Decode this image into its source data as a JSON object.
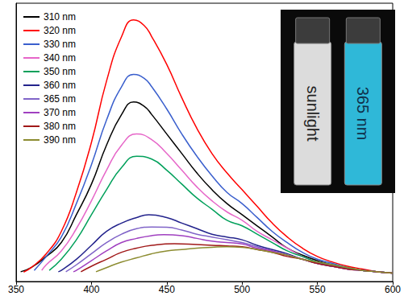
{
  "chart_data": {
    "type": "line",
    "xlim": [
      350,
      600
    ],
    "xticks": [
      350,
      400,
      450,
      500,
      550,
      600
    ],
    "ylim": [
      0,
      100
    ],
    "tick_labels": "x",
    "grid": false,
    "legend": "upper left",
    "annotations": [
      "sunlight",
      "365 nm"
    ],
    "series": [
      {
        "name": "310 nm",
        "color": "#000000",
        "x": [
          353,
          360,
          370,
          380,
          390,
          400,
          410,
          420,
          428,
          435,
          440,
          450,
          460,
          470,
          480,
          490,
          500,
          510,
          520,
          530,
          540,
          550,
          560,
          570,
          580,
          590,
          600
        ],
        "values": [
          3.5,
          5,
          9,
          14,
          24,
          35,
          49,
          60,
          64.5,
          63,
          60,
          53,
          46,
          39,
          33,
          28,
          24,
          20,
          16,
          12,
          9.5,
          7.5,
          6,
          5,
          4,
          3.5,
          3
        ]
      },
      {
        "name": "320 nm",
        "color": "#ff0000",
        "x": [
          355,
          360,
          370,
          380,
          390,
          400,
          410,
          420,
          428,
          435,
          440,
          450,
          460,
          470,
          480,
          490,
          500,
          510,
          520,
          530,
          540,
          550,
          560,
          570,
          580,
          590,
          600
        ],
        "values": [
          3.4,
          5,
          10,
          18,
          32,
          50,
          72,
          88,
          94,
          92,
          88,
          78,
          66,
          55,
          46,
          39,
          33,
          27,
          21,
          16,
          12,
          9,
          7,
          5.5,
          4.5,
          3.5,
          3
        ]
      },
      {
        "name": "330 nm",
        "color": "#3a5fcd",
        "x": [
          362,
          370,
          380,
          390,
          400,
          410,
          420,
          428,
          435,
          440,
          450,
          460,
          470,
          480,
          490,
          500,
          510,
          520,
          530,
          540,
          550,
          560,
          570,
          580,
          590,
          600
        ],
        "values": [
          4,
          9,
          16,
          28,
          42,
          58,
          70,
          74.4,
          73,
          70,
          62,
          53,
          45,
          38,
          32,
          28,
          23,
          18,
          14,
          10.5,
          8,
          6.5,
          5,
          4,
          3.5,
          3
        ]
      },
      {
        "name": "340 nm",
        "color": "#e666c8",
        "x": [
          367,
          370,
          380,
          390,
          400,
          410,
          420,
          430,
          440,
          450,
          460,
          470,
          480,
          490,
          500,
          510,
          520,
          530,
          540,
          550,
          560,
          570,
          580,
          590,
          600
        ],
        "values": [
          4,
          6,
          11,
          19,
          29,
          40,
          49,
          53,
          51,
          46,
          40,
          34,
          29,
          25,
          22,
          18,
          15,
          12,
          9,
          7,
          6,
          5,
          4,
          3.5,
          3
        ]
      },
      {
        "name": "350 nm",
        "color": "#00a05a",
        "x": [
          372,
          380,
          390,
          400,
          410,
          420,
          430,
          440,
          450,
          460,
          470,
          480,
          490,
          500,
          510,
          520,
          530,
          540,
          550,
          560,
          570,
          580,
          590,
          600
        ],
        "values": [
          4,
          8,
          15,
          24,
          33,
          41,
          45,
          44,
          40,
          35,
          30,
          26,
          22,
          20,
          17,
          14,
          11,
          9,
          7,
          6,
          5,
          4,
          3.5,
          3
        ]
      },
      {
        "name": "360 nm",
        "color": "#23238c",
        "x": [
          378,
          380,
          390,
          400,
          410,
          420,
          430,
          438,
          450,
          460,
          470,
          480,
          490,
          500,
          510,
          520,
          530,
          540,
          550,
          560,
          570,
          580,
          590,
          600
        ],
        "values": [
          3.5,
          4,
          8,
          13,
          18,
          21,
          23,
          24,
          23,
          21,
          19,
          17,
          16,
          15,
          13,
          11.5,
          10,
          8,
          6.5,
          5.5,
          4.5,
          4,
          3.5,
          3
        ]
      },
      {
        "name": "365 nm",
        "color": "#8064c8",
        "x": [
          383,
          390,
          400,
          410,
          420,
          430,
          440,
          450,
          460,
          470,
          480,
          490,
          500,
          510,
          520,
          530,
          540,
          550,
          560,
          570,
          580,
          590,
          600
        ],
        "values": [
          3.5,
          6,
          10,
          14,
          17,
          19,
          19.6,
          19.5,
          18.5,
          17,
          16,
          15,
          14,
          12.5,
          11,
          9.5,
          8,
          6.5,
          5.5,
          4.5,
          4,
          3.5,
          3
        ]
      },
      {
        "name": "370 nm",
        "color": "#a040c0",
        "x": [
          388,
          390,
          400,
          410,
          420,
          430,
          440,
          448,
          460,
          470,
          480,
          490,
          500,
          510,
          520,
          530,
          540,
          550,
          560,
          570,
          580,
          590,
          600
        ],
        "values": [
          3.5,
          4,
          7.5,
          11,
          14,
          15.5,
          16.5,
          16.8,
          16.5,
          15.5,
          14.5,
          14,
          13.5,
          12,
          11,
          9.5,
          8,
          6.5,
          5.5,
          4.5,
          4,
          3.5,
          3
        ]
      },
      {
        "name": "380 nm",
        "color": "#a01818",
        "x": [
          393,
          400,
          410,
          420,
          430,
          440,
          455,
          470,
          480,
          490,
          500,
          510,
          520,
          530,
          540,
          550,
          560,
          570,
          580,
          590,
          600
        ],
        "values": [
          3.5,
          5.5,
          8,
          10.5,
          12,
          13,
          13.6,
          13.3,
          13,
          12.8,
          12.5,
          11.5,
          10.5,
          9,
          8,
          6.5,
          5.5,
          4.5,
          4,
          3.5,
          3
        ]
      },
      {
        "name": "390 nm",
        "color": "#8c8c30",
        "x": [
          403,
          410,
          420,
          430,
          440,
          450,
          460,
          470,
          480,
          490,
          500,
          510,
          520,
          530,
          540,
          550,
          560,
          570,
          580,
          590,
          600
        ],
        "values": [
          3.5,
          5,
          7,
          8.5,
          10,
          11,
          11.5,
          12,
          12.3,
          12.5,
          12.3,
          11.5,
          10.5,
          9.5,
          8,
          7,
          6,
          5,
          4,
          3.5,
          3
        ]
      }
    ]
  }
}
